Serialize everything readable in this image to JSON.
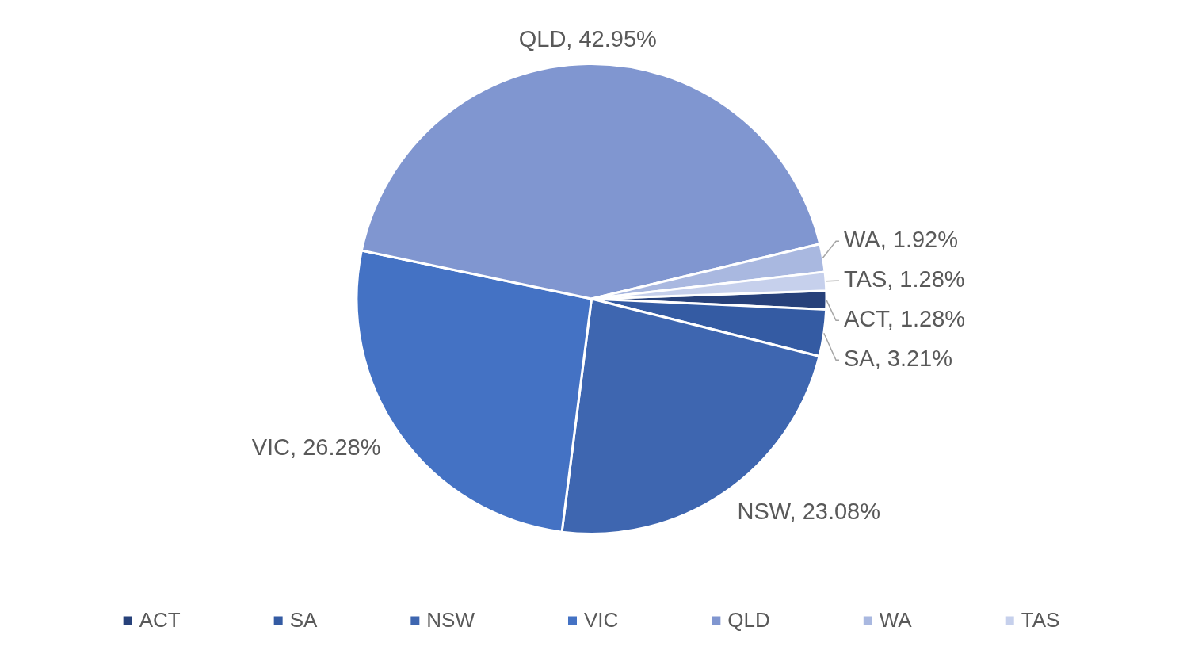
{
  "chart_data": {
    "type": "pie",
    "categories": [
      "ACT",
      "SA",
      "NSW",
      "VIC",
      "QLD",
      "WA",
      "TAS"
    ],
    "values": [
      1.28,
      3.21,
      23.08,
      26.28,
      42.95,
      1.92,
      1.28
    ],
    "value_labels": [
      "ACT, 1.28%",
      "SA, 3.21%",
      "NSW, 23.08%",
      "VIC, 26.28%",
      "QLD, 42.95%",
      "WA, 1.92%",
      "TAS, 1.28%"
    ],
    "colors": [
      "#27417a",
      "#345ba3",
      "#3e66b0",
      "#4472c4",
      "#8096d0",
      "#a9b8e0",
      "#c6d0ec"
    ],
    "legend": "bottom",
    "data_labels": true
  }
}
